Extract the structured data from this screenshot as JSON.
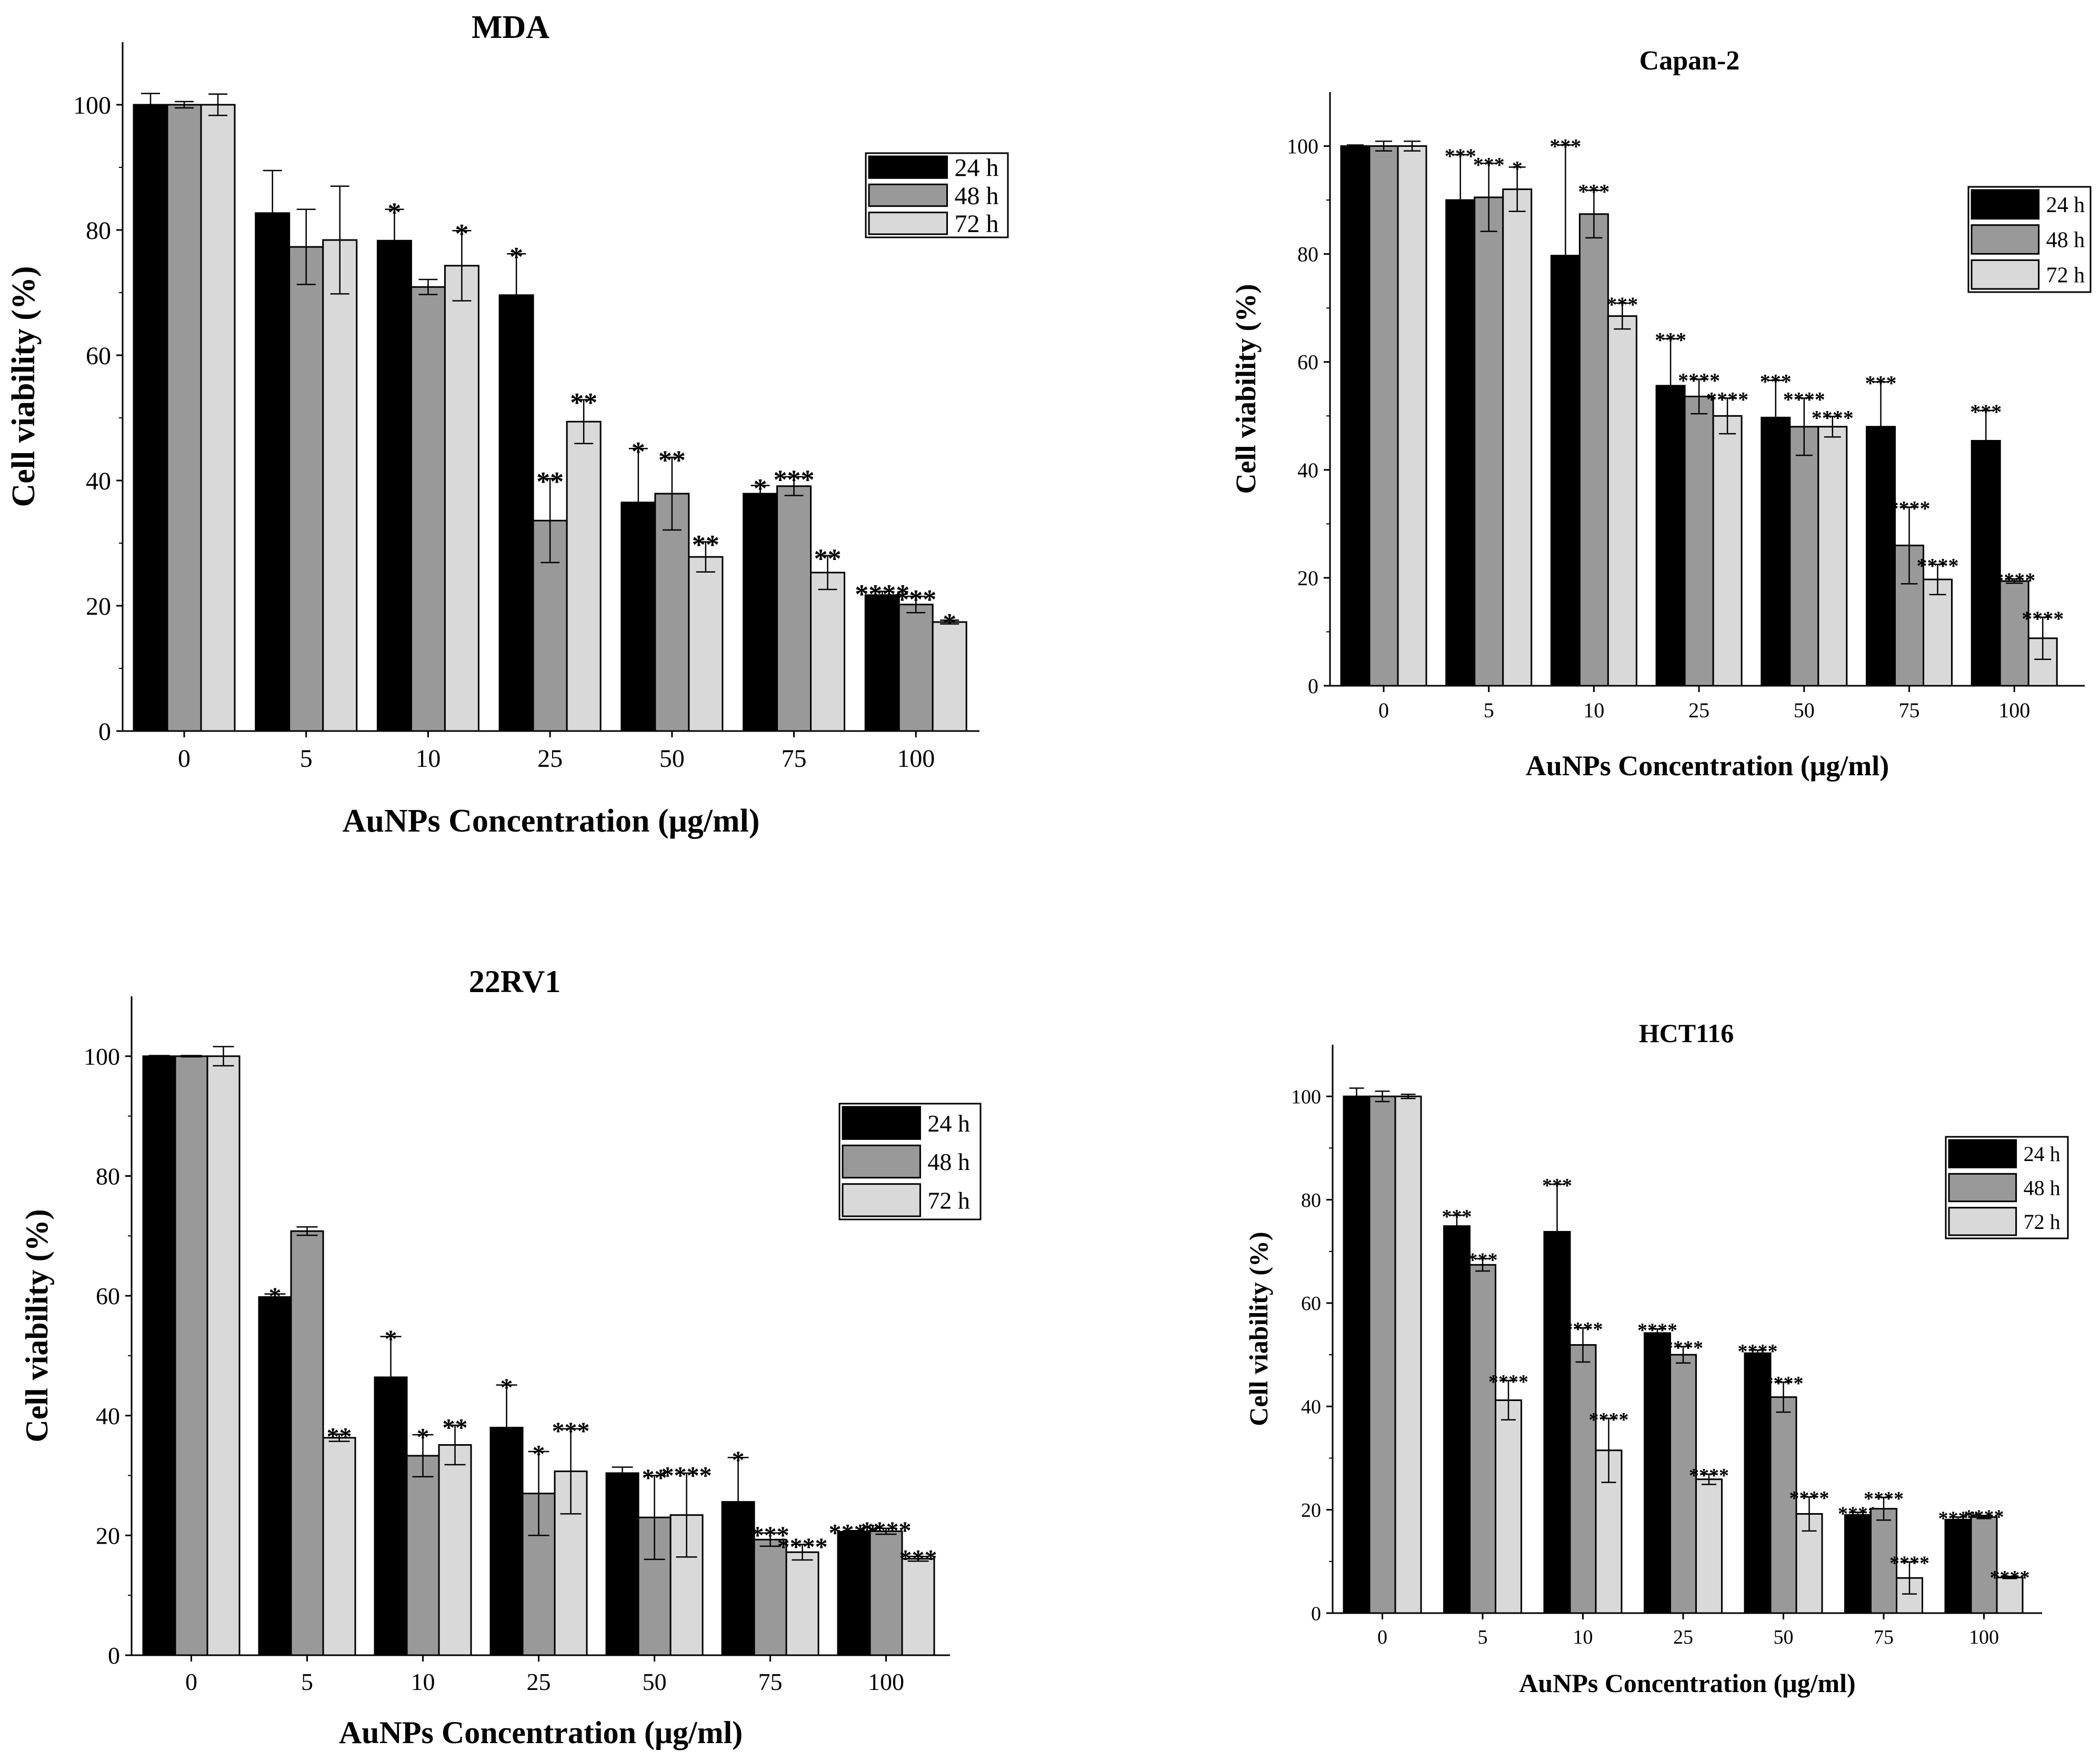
{
  "colors": {
    "h24": "#000000",
    "h48": "#999999",
    "h72": "#d9d9d9",
    "axis": "#000000"
  },
  "chart_data": [
    {
      "type": "bar",
      "title": "MDA",
      "xlabel": "AuNPs Concentration (μg/ml)",
      "ylabel": "Cell viability (%)",
      "ylim": [
        0,
        110
      ],
      "yticks": [
        0,
        20,
        40,
        60,
        80,
        100
      ],
      "categories": [
        "0",
        "5",
        "10",
        "25",
        "50",
        "75",
        "100"
      ],
      "legend_position": "top-right",
      "series": [
        {
          "name": "24 h",
          "values": [
            100,
            82.7,
            78.3,
            69.6,
            36.5,
            37.9,
            21.7
          ],
          "errors": [
            1.8,
            6.8,
            5.0,
            6.6,
            8.6,
            1.3,
            0.6
          ],
          "sig": [
            "",
            "",
            "*",
            "*",
            "*",
            "*",
            "****"
          ]
        },
        {
          "name": "48 h",
          "values": [
            100,
            77.3,
            70.9,
            33.6,
            37.9,
            39.1,
            20.2
          ],
          "errors": [
            0.5,
            6.0,
            1.2,
            6.7,
            5.8,
            1.5,
            1.3
          ],
          "sig": [
            "",
            "",
            "",
            "**",
            "**",
            "***",
            "***"
          ]
        },
        {
          "name": "72 h",
          "values": [
            100,
            78.4,
            74.3,
            49.4,
            27.8,
            25.3,
            17.4
          ],
          "errors": [
            1.7,
            8.6,
            5.6,
            3.5,
            2.4,
            2.7,
            0.3
          ],
          "sig": [
            "",
            "",
            "*",
            "**",
            "**",
            "**",
            "*"
          ]
        }
      ]
    },
    {
      "type": "bar",
      "title": "Capan-2",
      "xlabel": "AuNPs Concentration (μg/ml)",
      "ylabel": "Cell viability (%)",
      "ylim": [
        0,
        110
      ],
      "yticks": [
        0,
        20,
        40,
        60,
        80,
        100
      ],
      "categories": [
        "0",
        "5",
        "10",
        "25",
        "50",
        "75",
        "100"
      ],
      "legend_position": "top-right",
      "series": [
        {
          "name": "24 h",
          "values": [
            100,
            90.0,
            79.7,
            55.6,
            49.7,
            48.0,
            45.4
          ],
          "errors": [
            0.2,
            8.4,
            20.5,
            8.7,
            6.9,
            8.3,
            5.6
          ],
          "sig": [
            "",
            "***",
            "***",
            "***",
            "***",
            "***",
            "***"
          ]
        },
        {
          "name": "48 h",
          "values": [
            100,
            90.5,
            87.4,
            53.6,
            48.0,
            26.0,
            19.4
          ],
          "errors": [
            0.9,
            6.3,
            4.4,
            3.2,
            5.3,
            7.1,
            0.4
          ],
          "sig": [
            "",
            "***",
            "***",
            "****",
            "****",
            "****",
            "****"
          ]
        },
        {
          "name": "72 h",
          "values": [
            100,
            92.0,
            68.5,
            50.0,
            48.0,
            19.7,
            8.8
          ],
          "errors": [
            0.9,
            4.1,
            2.4,
            3.3,
            1.9,
            2.8,
            3.9
          ],
          "sig": [
            "",
            "*",
            "***",
            "****",
            "****",
            "****",
            "****"
          ]
        }
      ]
    },
    {
      "type": "bar",
      "title": "22RV1",
      "xlabel": "AuNPs Concentration (μg/ml)",
      "ylabel": "Cell viability (%)",
      "ylim": [
        0,
        110
      ],
      "yticks": [
        0,
        20,
        40,
        60,
        80,
        100
      ],
      "categories": [
        "0",
        "5",
        "10",
        "25",
        "50",
        "75",
        "100"
      ],
      "legend_position": "top-right",
      "series": [
        {
          "name": "24 h",
          "values": [
            100,
            59.8,
            46.4,
            38.0,
            30.4,
            25.6,
            20.6
          ],
          "errors": [
            0.1,
            0.5,
            6.8,
            7.1,
            1.0,
            7.4,
            0.2
          ],
          "sig": [
            "",
            "*",
            "*",
            "*",
            "",
            "*",
            "****"
          ]
        },
        {
          "name": "48 h",
          "values": [
            100,
            70.8,
            33.3,
            27.0,
            23.0,
            19.3,
            20.7
          ],
          "errors": [
            0.1,
            0.7,
            3.5,
            7.0,
            7.0,
            1.1,
            0.5
          ],
          "sig": [
            "",
            "",
            "*",
            "*",
            "**",
            "***",
            "****"
          ]
        },
        {
          "name": "72 h",
          "values": [
            100,
            36.3,
            35.1,
            30.7,
            23.4,
            17.2,
            16.1
          ],
          "errors": [
            1.6,
            0.6,
            3.3,
            7.1,
            7.0,
            1.3,
            0.4
          ],
          "sig": [
            "",
            "**",
            "**",
            "***",
            "****",
            "****",
            "***"
          ]
        }
      ]
    },
    {
      "type": "bar",
      "title": "HCT116",
      "xlabel": "AuNPs Concentration (μg/ml)",
      "ylabel": "Cell viability (%)",
      "ylim": [
        0,
        110
      ],
      "yticks": [
        0,
        20,
        40,
        60,
        80,
        100
      ],
      "categories": [
        "0",
        "5",
        "10",
        "25",
        "50",
        "75",
        "100"
      ],
      "legend_position": "top-right",
      "series": [
        {
          "name": "24 h",
          "values": [
            100,
            74.9,
            73.8,
            54.2,
            50.3,
            19.0,
            18.1
          ],
          "errors": [
            1.6,
            2.1,
            9.2,
            0.8,
            0.6,
            0.5,
            0.5
          ],
          "sig": [
            "",
            "***",
            "***",
            "****",
            "****",
            "****",
            "****"
          ]
        },
        {
          "name": "48 h",
          "values": [
            100,
            67.4,
            51.9,
            50.0,
            41.8,
            20.2,
            18.6
          ],
          "errors": [
            1.0,
            1.2,
            3.3,
            1.6,
            2.9,
            2.2,
            0.3
          ],
          "sig": [
            "",
            "***",
            "****",
            "****",
            "****",
            "****",
            "****"
          ]
        },
        {
          "name": "72 h",
          "values": [
            100,
            41.2,
            31.5,
            25.9,
            19.2,
            6.8,
            6.9
          ],
          "errors": [
            0.4,
            3.8,
            6.2,
            1.0,
            3.3,
            3.1,
            0.2
          ],
          "sig": [
            "",
            "****",
            "****",
            "****",
            "****",
            "****",
            "****"
          ]
        }
      ]
    }
  ]
}
